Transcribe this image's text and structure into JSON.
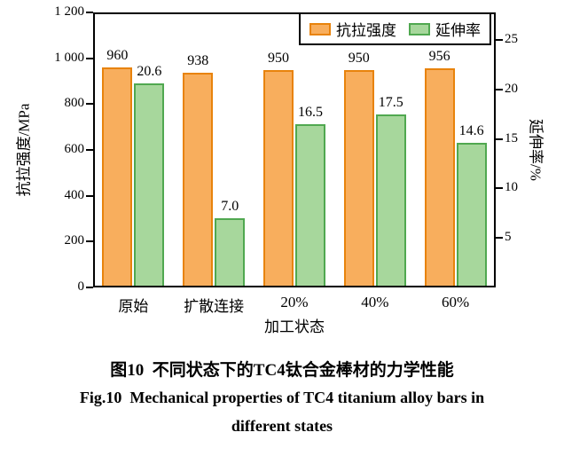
{
  "chart_data": {
    "type": "bar",
    "categories": [
      "原始",
      "扩散连接",
      "20%",
      "40%",
      "60%"
    ],
    "series": [
      {
        "name": "抗拉强度",
        "axis": "left",
        "unit": "MPa",
        "values": [
          960,
          938,
          950,
          950,
          956
        ],
        "value_labels": [
          "960",
          "938",
          "950",
          "950",
          "956"
        ],
        "fill": "#F8AE5D",
        "border": "#E8830C"
      },
      {
        "name": "延伸率",
        "axis": "right",
        "unit": "%",
        "values": [
          20.6,
          7.0,
          16.5,
          17.5,
          14.6
        ],
        "value_labels": [
          "20.6",
          "7.0",
          "16.5",
          "17.5",
          "14.6"
        ],
        "fill": "#A7D79C",
        "border": "#50A850"
      }
    ],
    "left_axis": {
      "label": "抗拉强度/MPa",
      "min": 0,
      "max": 1200,
      "tick_values": [
        0,
        200,
        400,
        600,
        800,
        1000,
        1200
      ],
      "tick_labels": [
        "0",
        "200",
        "400",
        "600",
        "800",
        "1 000",
        "1 200"
      ]
    },
    "right_axis": {
      "label": "延伸率/%",
      "min": 0,
      "max": 27.78,
      "tick_values": [
        5,
        10,
        15,
        20,
        25
      ],
      "tick_labels": [
        "5",
        "10",
        "15",
        "20",
        "25"
      ]
    },
    "xlabel": "加工状态",
    "legend": {
      "position": "top-right",
      "entries": [
        "抗拉强度",
        "延伸率"
      ]
    },
    "grid": false
  },
  "caption": {
    "line1": "图10  不同状态下的TC4钛合金棒材的力学性能",
    "line2": "Fig.10  Mechanical properties of TC4 titanium alloy bars in",
    "line3": "different states"
  }
}
